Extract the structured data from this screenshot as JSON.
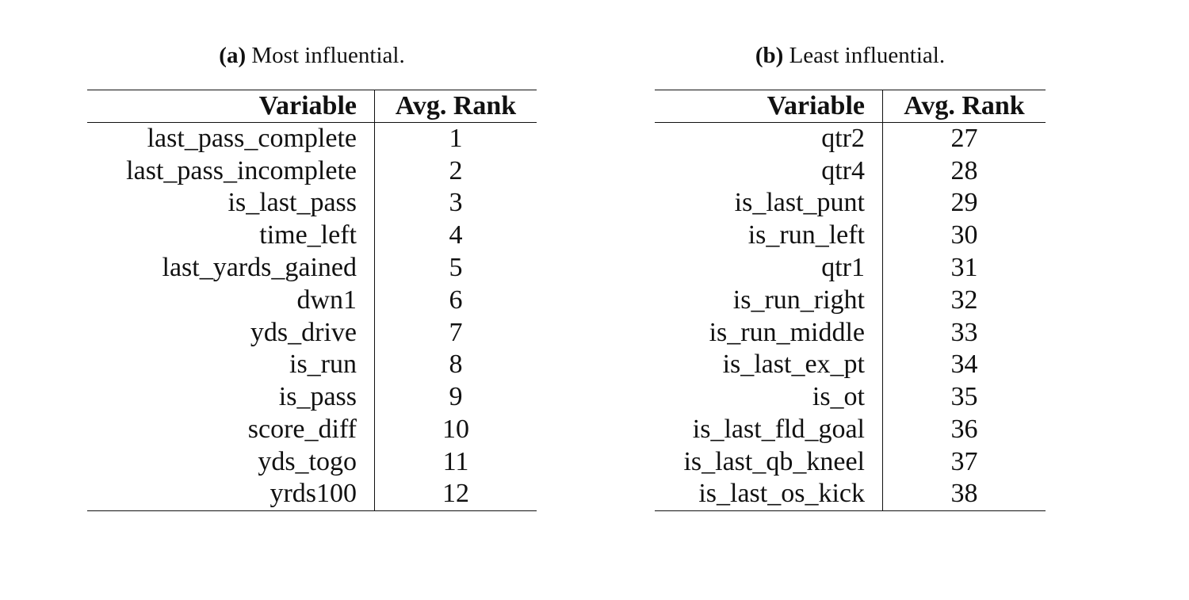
{
  "panel_a": {
    "caption_tag": "(a)",
    "caption_text": "Most influential.",
    "headers": {
      "variable": "Variable",
      "rank": "Avg. Rank"
    },
    "rows": [
      {
        "variable": "last_pass_complete",
        "rank": "1"
      },
      {
        "variable": "last_pass_incomplete",
        "rank": "2"
      },
      {
        "variable": "is_last_pass",
        "rank": "3"
      },
      {
        "variable": "time_left",
        "rank": "4"
      },
      {
        "variable": "last_yards_gained",
        "rank": "5"
      },
      {
        "variable": "dwn1",
        "rank": "6"
      },
      {
        "variable": "yds_drive",
        "rank": "7"
      },
      {
        "variable": "is_run",
        "rank": "8"
      },
      {
        "variable": "is_pass",
        "rank": "9"
      },
      {
        "variable": "score_diff",
        "rank": "10"
      },
      {
        "variable": "yds_togo",
        "rank": "11"
      },
      {
        "variable": "yrds100",
        "rank": "12"
      }
    ]
  },
  "panel_b": {
    "caption_tag": "(b)",
    "caption_text": "Least influential.",
    "headers": {
      "variable": "Variable",
      "rank": "Avg. Rank"
    },
    "rows": [
      {
        "variable": "qtr2",
        "rank": "27"
      },
      {
        "variable": "qtr4",
        "rank": "28"
      },
      {
        "variable": "is_last_punt",
        "rank": "29"
      },
      {
        "variable": "is_run_left",
        "rank": "30"
      },
      {
        "variable": "qtr1",
        "rank": "31"
      },
      {
        "variable": "is_run_right",
        "rank": "32"
      },
      {
        "variable": "is_run_middle",
        "rank": "33"
      },
      {
        "variable": "is_last_ex_pt",
        "rank": "34"
      },
      {
        "variable": "is_ot",
        "rank": "35"
      },
      {
        "variable": "is_last_fld_goal",
        "rank": "36"
      },
      {
        "variable": "is_last_qb_kneel",
        "rank": "37"
      },
      {
        "variable": "is_last_os_kick",
        "rank": "38"
      }
    ]
  }
}
